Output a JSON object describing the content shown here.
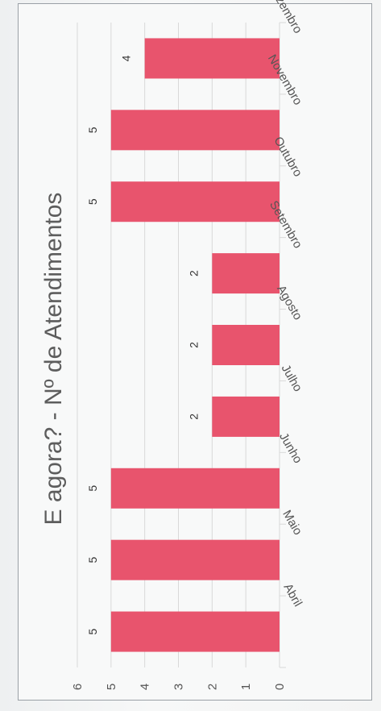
{
  "chart_data": {
    "type": "bar",
    "orientation": "rotated 90 degrees clockwise (horizontal bars growing leftward)",
    "title": "E agora? - Nº de Atendimentos",
    "categories": [
      "Abril",
      "Maio",
      "Junho",
      "Julho",
      "Agosto",
      "Setembro",
      "Outubro",
      "Novembro",
      "Dezembro"
    ],
    "values": [
      5,
      5,
      5,
      2,
      2,
      2,
      5,
      5,
      4
    ],
    "value_labels": [
      "5",
      "5",
      "5",
      "2",
      "2",
      "2",
      "5",
      "5",
      "4"
    ],
    "ylim": [
      0,
      6
    ],
    "yticks": [
      "0",
      "1",
      "2",
      "3",
      "4",
      "5",
      "6"
    ],
    "grid": true,
    "bar_color": "#e8546d",
    "grid_color": "#d9d9d9"
  }
}
